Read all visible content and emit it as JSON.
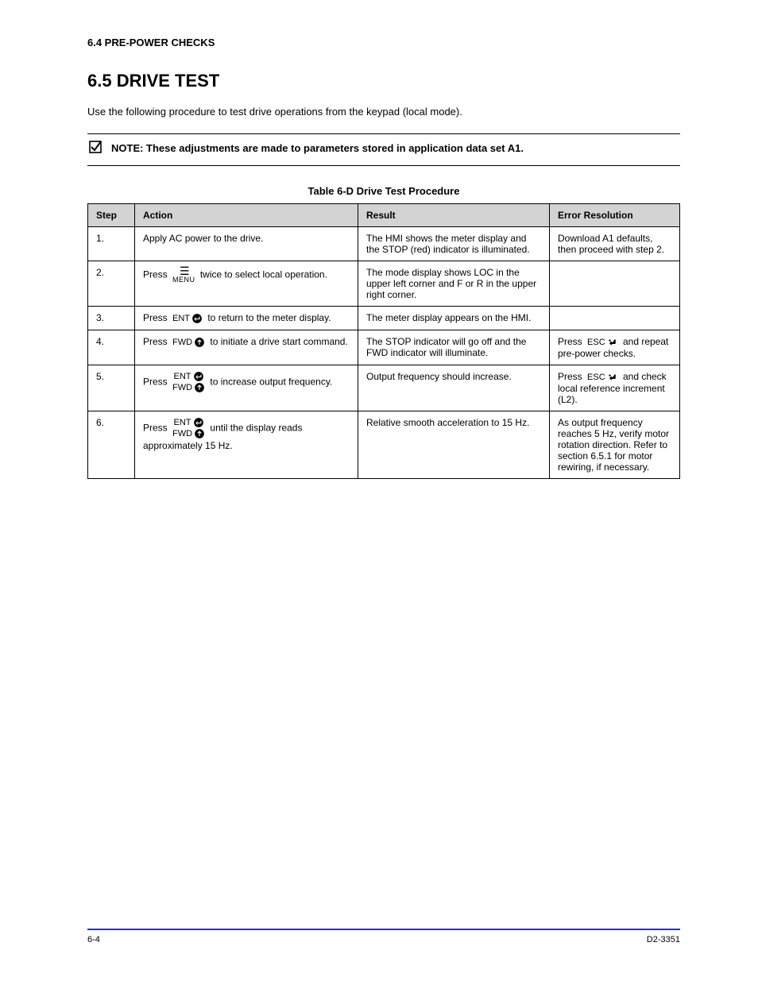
{
  "section_number": "6.4 PRE-POWER CHECKS",
  "section_title": "6.5 DRIVE TEST",
  "intro": "Use the following procedure to test drive operations from the keypad (local mode).",
  "note": "NOTE: These adjustments are made to parameters stored in application data set A1.",
  "table_caption": "Table 6-D  Drive Test Procedure",
  "columns": [
    "Step",
    "Action",
    "Result",
    "Error Resolution"
  ],
  "rows": [
    {
      "step": "1.",
      "action_pre": "Apply AC power to the drive.",
      "action_icons": [],
      "action_post": "",
      "result": "The HMI shows the meter display and the STOP (red) indicator is illuminated.",
      "error": "Download A1 defaults, then proceed with step 2."
    },
    {
      "step": "2.",
      "action_pre": "Press ",
      "action_icons": [
        "menu"
      ],
      "action_post": " twice to select local operation.",
      "result": "The mode display shows LOC in the upper left corner and F or R in the upper right corner.",
      "error": ""
    },
    {
      "step": "3.",
      "action_pre": "Press ",
      "action_icons": [
        "ent"
      ],
      "action_post": " to return to the meter display.",
      "result": "The meter display appears on the HMI.",
      "error": ""
    },
    {
      "step": "4.",
      "action_pre": "Press ",
      "action_icons": [
        "fwd"
      ],
      "action_post": " to initiate a drive start command.",
      "result": "The STOP indicator will go off and the FWD indicator will illuminate.",
      "error_pre": "Press ",
      "error_icons": [
        "esc"
      ],
      "error_post": " and repeat pre-power checks."
    },
    {
      "step": "5.",
      "action_pre": "Press ",
      "action_icons": [
        "ent",
        "fwd"
      ],
      "action_post": " to increase output frequency.",
      "result": "Output frequency should increase.",
      "error_pre": "Press ",
      "error_icons": [
        "esc"
      ],
      "error_post": " and check local reference increment (L2)."
    },
    {
      "step": "6.",
      "action_pre": "Press ",
      "action_icons": [
        "ent",
        "fwd"
      ],
      "action_post": " until the display reads approximately 15 Hz.",
      "result": "Relative smooth acceleration to 15 Hz.",
      "error": "As output frequency reaches 5 Hz, verify motor rotation direction. Refer to section 6.5.1 for motor rewiring, if necessary."
    }
  ],
  "footer_left": "6-4",
  "footer_right": "D2-3351"
}
